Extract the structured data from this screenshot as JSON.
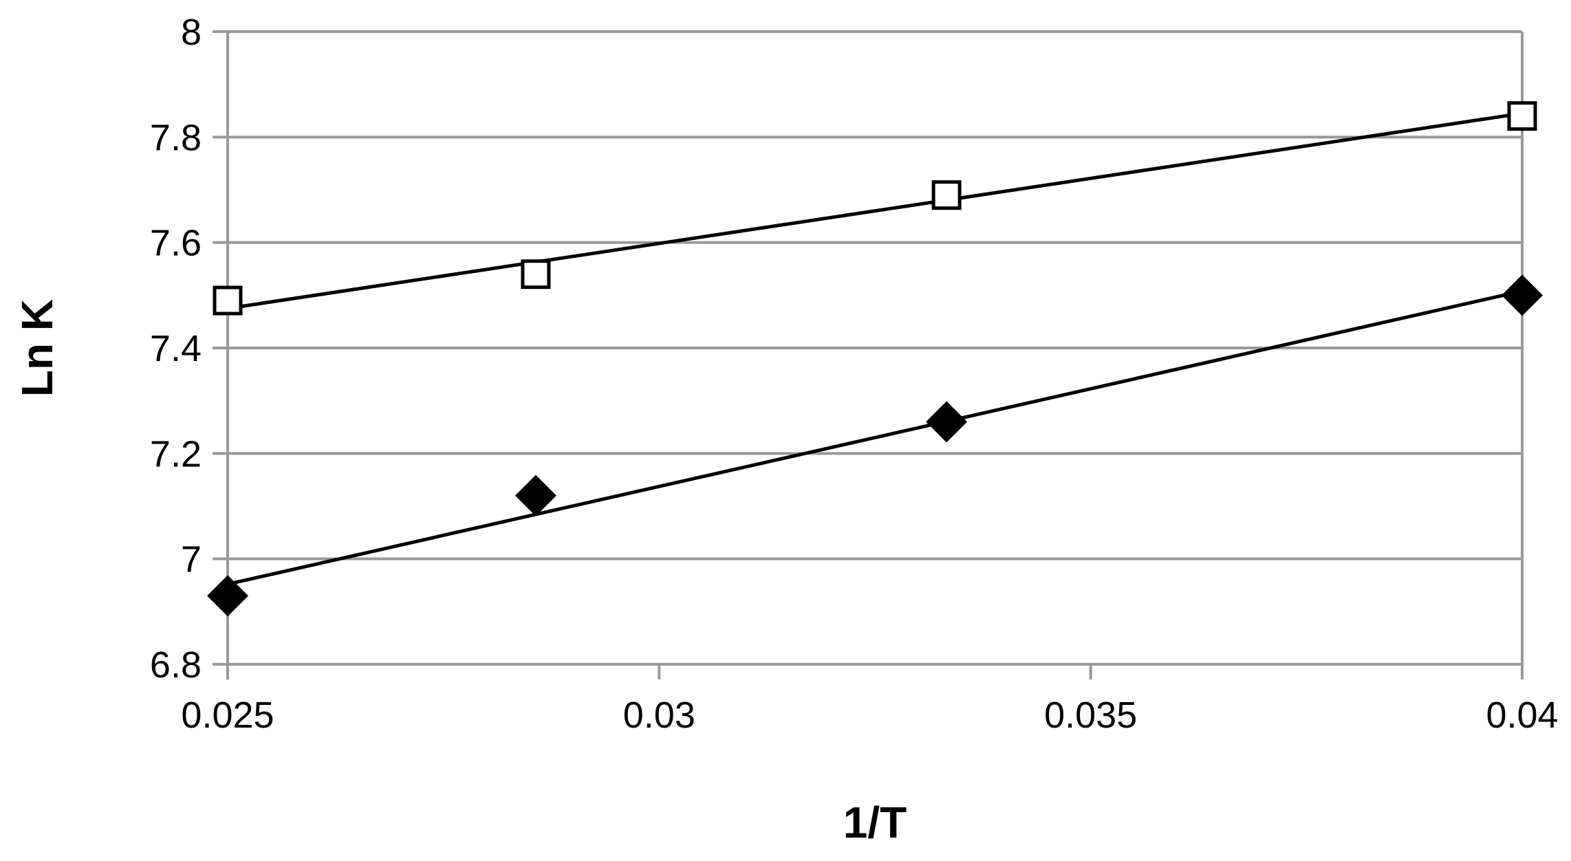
{
  "chart_data": {
    "type": "scatter",
    "title": "",
    "xlabel": "1/T",
    "ylabel": "Ln K",
    "xlim": [
      0.025,
      0.04
    ],
    "ylim": [
      6.8,
      8
    ],
    "x_ticks": [
      0.025,
      0.03,
      0.035,
      0.04
    ],
    "x_tick_labels": [
      "0.025",
      "0.03",
      "0.035",
      "0.04"
    ],
    "y_ticks": [
      6.8,
      7,
      7.2,
      7.4,
      7.6,
      7.8,
      8
    ],
    "y_tick_labels": [
      "6.8",
      "7",
      "7.2",
      "7.4",
      "7.6",
      "7.8",
      "8"
    ],
    "grid": "horizontal major gridlines on",
    "legend": "none",
    "series": [
      {
        "marker": "open-square",
        "x": [
          0.025,
          0.02857,
          0.03333,
          0.04
        ],
        "y": [
          7.49,
          7.54,
          7.69,
          7.84
        ],
        "trendline": {
          "type": "linear",
          "from": [
            0.025,
            7.475
          ],
          "to": [
            0.04,
            7.845
          ]
        }
      },
      {
        "marker": "filled-diamond",
        "x": [
          0.025,
          0.02857,
          0.03333,
          0.04
        ],
        "y": [
          6.93,
          7.12,
          7.26,
          7.5
        ],
        "trendline": {
          "type": "linear",
          "from": [
            0.025,
            6.952
          ],
          "to": [
            0.04,
            7.508
          ]
        }
      }
    ],
    "colors": {
      "axis": "#999999",
      "grid": "#999999",
      "marks": "#000000"
    }
  }
}
